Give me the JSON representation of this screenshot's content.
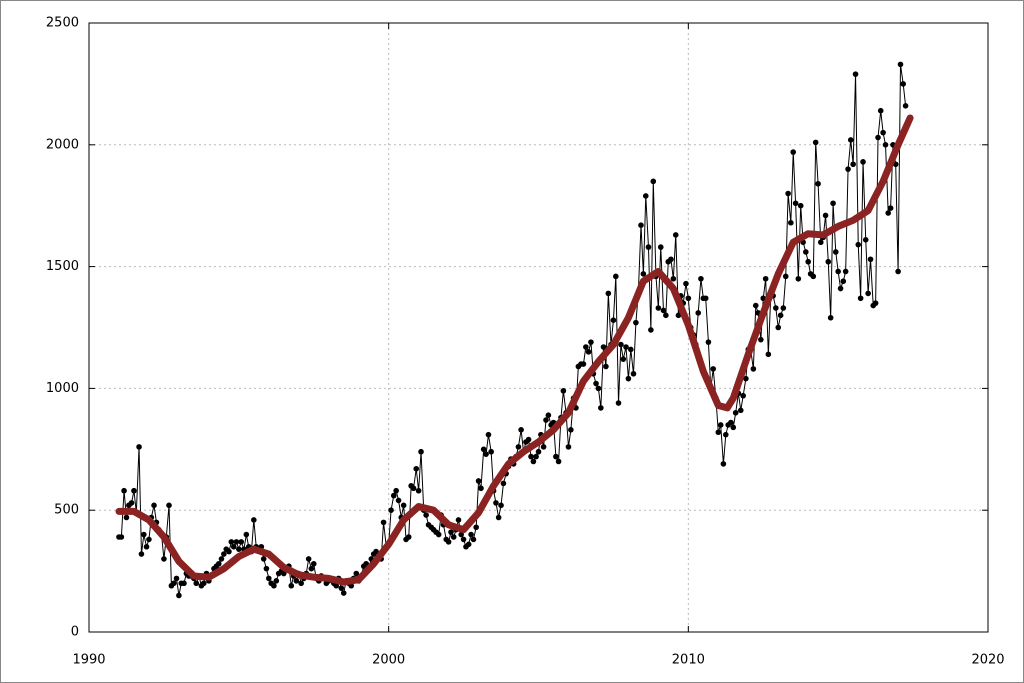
{
  "chart_data": {
    "type": "line",
    "xlim": [
      1990,
      2020
    ],
    "xticks": [
      1990,
      2000,
      2010,
      2020
    ],
    "ylim": [
      0,
      2500
    ],
    "yticks": [
      0,
      500,
      1000,
      1500,
      2000,
      2500
    ],
    "grid": true,
    "series": [
      {
        "color": "#000000",
        "markers": true,
        "x": [
          1991.0,
          1991.08,
          1991.17,
          1991.25,
          1991.33,
          1991.42,
          1991.5,
          1991.58,
          1991.67,
          1991.75,
          1991.83,
          1991.92,
          1992.0,
          1992.08,
          1992.17,
          1992.25,
          1992.33,
          1992.42,
          1992.5,
          1992.58,
          1992.67,
          1992.75,
          1992.83,
          1992.92,
          1993.0,
          1993.08,
          1993.17,
          1993.25,
          1993.33,
          1993.42,
          1993.5,
          1993.58,
          1993.67,
          1993.75,
          1993.83,
          1993.92,
          1994.0,
          1994.08,
          1994.17,
          1994.25,
          1994.33,
          1994.42,
          1994.5,
          1994.58,
          1994.67,
          1994.75,
          1994.83,
          1994.92,
          1995.0,
          1995.08,
          1995.17,
          1995.25,
          1995.33,
          1995.42,
          1995.5,
          1995.58,
          1995.67,
          1995.75,
          1995.83,
          1995.92,
          1996.0,
          1996.08,
          1996.17,
          1996.25,
          1996.33,
          1996.42,
          1996.5,
          1996.58,
          1996.67,
          1996.75,
          1996.83,
          1996.92,
          1997.0,
          1997.08,
          1997.17,
          1997.25,
          1997.33,
          1997.42,
          1997.5,
          1997.58,
          1997.67,
          1997.75,
          1997.83,
          1997.92,
          1998.0,
          1998.08,
          1998.17,
          1998.25,
          1998.33,
          1998.42,
          1998.5,
          1998.58,
          1998.67,
          1998.75,
          1998.83,
          1998.92,
          1999.0,
          1999.08,
          1999.17,
          1999.25,
          1999.33,
          1999.42,
          1999.5,
          1999.58,
          1999.67,
          1999.75,
          1999.83,
          1999.92,
          2000.0,
          2000.08,
          2000.17,
          2000.25,
          2000.33,
          2000.42,
          2000.5,
          2000.58,
          2000.67,
          2000.75,
          2000.83,
          2000.92,
          2001.0,
          2001.08,
          2001.17,
          2001.25,
          2001.33,
          2001.42,
          2001.5,
          2001.58,
          2001.67,
          2001.75,
          2001.83,
          2001.92,
          2002.0,
          2002.08,
          2002.17,
          2002.25,
          2002.33,
          2002.42,
          2002.5,
          2002.58,
          2002.67,
          2002.75,
          2002.83,
          2002.92,
          2003.0,
          2003.08,
          2003.17,
          2003.25,
          2003.33,
          2003.42,
          2003.5,
          2003.58,
          2003.67,
          2003.75,
          2003.83,
          2003.92,
          2004.0,
          2004.08,
          2004.17,
          2004.25,
          2004.33,
          2004.42,
          2004.5,
          2004.58,
          2004.67,
          2004.75,
          2004.83,
          2004.92,
          2005.0,
          2005.08,
          2005.17,
          2005.25,
          2005.33,
          2005.42,
          2005.5,
          2005.58,
          2005.67,
          2005.75,
          2005.83,
          2005.92,
          2006.0,
          2006.08,
          2006.17,
          2006.25,
          2006.33,
          2006.42,
          2006.5,
          2006.58,
          2006.67,
          2006.75,
          2006.83,
          2006.92,
          2007.0,
          2007.08,
          2007.17,
          2007.25,
          2007.33,
          2007.42,
          2007.5,
          2007.58,
          2007.67,
          2007.75,
          2007.83,
          2007.92,
          2008.0,
          2008.08,
          2008.17,
          2008.25,
          2008.33,
          2008.42,
          2008.5,
          2008.58,
          2008.67,
          2008.75,
          2008.83,
          2008.92,
          2009.0,
          2009.08,
          2009.17,
          2009.25,
          2009.33,
          2009.42,
          2009.5,
          2009.58,
          2009.67,
          2009.75,
          2009.83,
          2009.92,
          2010.0,
          2010.08,
          2010.17,
          2010.25,
          2010.33,
          2010.42,
          2010.5,
          2010.58,
          2010.67,
          2010.75,
          2010.83,
          2010.92,
          2011.0,
          2011.08,
          2011.17,
          2011.25,
          2011.33,
          2011.42,
          2011.5,
          2011.58,
          2011.67,
          2011.75,
          2011.83,
          2011.92,
          2012.0,
          2012.08,
          2012.17,
          2012.25,
          2012.33,
          2012.42,
          2012.5,
          2012.58,
          2012.67,
          2012.75,
          2012.83,
          2012.92,
          2013.0,
          2013.08,
          2013.17,
          2013.25,
          2013.33,
          2013.42,
          2013.5,
          2013.58,
          2013.67,
          2013.75,
          2013.83,
          2013.92,
          2014.0,
          2014.08,
          2014.17,
          2014.25,
          2014.33,
          2014.42,
          2014.5,
          2014.58,
          2014.67,
          2014.75,
          2014.83,
          2014.92,
          2015.0,
          2015.08,
          2015.17,
          2015.25,
          2015.33,
          2015.42,
          2015.5,
          2015.58,
          2015.67,
          2015.75,
          2015.83,
          2015.92,
          2016.0,
          2016.08,
          2016.17,
          2016.25,
          2016.33,
          2016.42,
          2016.5,
          2016.58,
          2016.67,
          2016.75,
          2016.83,
          2016.92,
          2017.0,
          2017.08,
          2017.17,
          2017.25
        ],
        "values": [
          390,
          390,
          580,
          470,
          520,
          530,
          580,
          490,
          760,
          320,
          400,
          350,
          380,
          470,
          520,
          450,
          420,
          400,
          300,
          390,
          520,
          190,
          200,
          220,
          150,
          200,
          200,
          240,
          230,
          230,
          220,
          200,
          230,
          190,
          200,
          240,
          210,
          230,
          260,
          270,
          280,
          300,
          320,
          340,
          330,
          370,
          350,
          370,
          340,
          370,
          340,
          400,
          350,
          330,
          460,
          350,
          340,
          350,
          300,
          260,
          220,
          200,
          190,
          210,
          240,
          250,
          240,
          260,
          270,
          190,
          230,
          210,
          240,
          200,
          220,
          240,
          300,
          260,
          280,
          220,
          210,
          230,
          220,
          200,
          210,
          220,
          200,
          190,
          220,
          180,
          160,
          210,
          200,
          190,
          220,
          240,
          210,
          230,
          270,
          280,
          260,
          300,
          320,
          330,
          310,
          300,
          450,
          350,
          360,
          500,
          560,
          580,
          540,
          470,
          520,
          380,
          390,
          600,
          590,
          670,
          580,
          740,
          500,
          480,
          440,
          430,
          420,
          410,
          400,
          480,
          440,
          380,
          370,
          410,
          390,
          420,
          460,
          400,
          380,
          350,
          360,
          400,
          380,
          430,
          620,
          590,
          750,
          730,
          810,
          740,
          580,
          530,
          470,
          520,
          610,
          650,
          680,
          710,
          690,
          720,
          760,
          830,
          740,
          780,
          790,
          720,
          700,
          720,
          740,
          810,
          760,
          870,
          890,
          850,
          860,
          720,
          700,
          880,
          990,
          900,
          760,
          830,
          960,
          920,
          1090,
          1100,
          1100,
          1170,
          1150,
          1190,
          1060,
          1020,
          1000,
          920,
          1170,
          1090,
          1390,
          1180,
          1280,
          1460,
          940,
          1180,
          1120,
          1170,
          1040,
          1160,
          1060,
          1270,
          1390,
          1670,
          1470,
          1790,
          1580,
          1240,
          1850,
          1460,
          1330,
          1580,
          1320,
          1300,
          1520,
          1530,
          1450,
          1630,
          1300,
          1380,
          1350,
          1430,
          1370,
          1250,
          1220,
          1180,
          1310,
          1450,
          1370,
          1370,
          1190,
          1000,
          1080,
          960,
          820,
          850,
          690,
          810,
          850,
          860,
          840,
          900,
          980,
          910,
          970,
          1040,
          1160,
          1160,
          1080,
          1340,
          1310,
          1200,
          1370,
          1450,
          1140,
          1380,
          1380,
          1330,
          1250,
          1300,
          1330,
          1460,
          1800,
          1680,
          1970,
          1760,
          1450,
          1750,
          1600,
          1560,
          1520,
          1470,
          1460,
          2010,
          1840,
          1600,
          1620,
          1710,
          1520,
          1290,
          1760,
          1560,
          1480,
          1410,
          1440,
          1480,
          1900,
          2020,
          1920,
          2290,
          1590,
          1370,
          1930,
          1610,
          1390,
          1530,
          1340,
          1350,
          2030,
          2140,
          2050,
          2000,
          1720,
          1740,
          2000,
          1920,
          1480,
          2330,
          2250,
          2160
        ]
      },
      {
        "color": "#8b2323",
        "markers": false,
        "line_width": 7,
        "x": [
          1991,
          1991.5,
          1992,
          1992.5,
          1993,
          1993.5,
          1994,
          1994.5,
          1995,
          1995.5,
          1996,
          1996.5,
          1997,
          1997.5,
          1998,
          1998.5,
          1999,
          1999.5,
          2000,
          2000.5,
          2001,
          2001.5,
          2002,
          2002.5,
          2003,
          2003.5,
          2004,
          2004.5,
          2005,
          2005.5,
          2006,
          2006.5,
          2007,
          2007.5,
          2008,
          2008.5,
          2009,
          2009.5,
          2010,
          2010.5,
          2011,
          2011.3,
          2011.5,
          2012,
          2012.5,
          2013,
          2013.5,
          2014,
          2014.5,
          2015,
          2015.5,
          2016,
          2016.5,
          2017,
          2017.4
        ],
        "values": [
          495,
          495,
          460,
          390,
          290,
          230,
          225,
          260,
          310,
          340,
          320,
          265,
          235,
          225,
          220,
          205,
          215,
          280,
          360,
          460,
          515,
          500,
          440,
          420,
          490,
          600,
          690,
          740,
          780,
          830,
          900,
          1030,
          1110,
          1180,
          1290,
          1440,
          1480,
          1410,
          1260,
          1070,
          930,
          920,
          960,
          1140,
          1310,
          1470,
          1600,
          1635,
          1630,
          1665,
          1690,
          1730,
          1850,
          2000,
          2110
        ]
      }
    ]
  }
}
